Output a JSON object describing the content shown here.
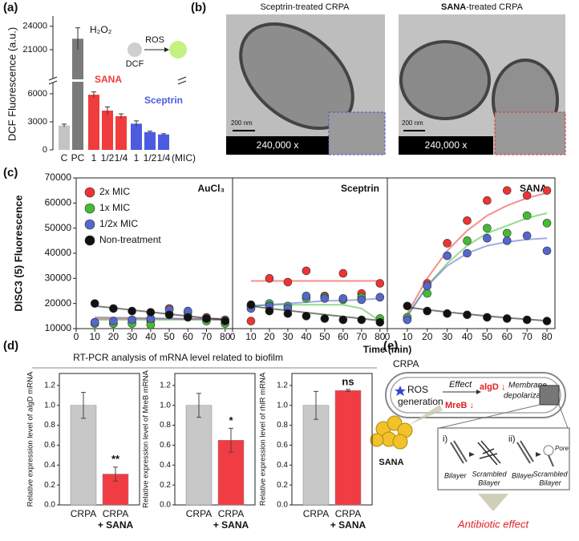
{
  "panel_labels": [
    "(a)",
    "(b)",
    "(c)",
    "(d)",
    "(e)"
  ],
  "chart_data": [
    {
      "type": "bar",
      "ylabel": "DCF Fluorescence (a.u.)",
      "categories": [
        "C",
        "PC",
        "1",
        "1/2",
        "1/4",
        "1",
        "1/2",
        "1/4"
      ],
      "unit_label": "(MIC)",
      "values": [
        2600,
        22400,
        5900,
        4200,
        3600,
        2800,
        1900,
        1650
      ],
      "errors": [
        150,
        1400,
        300,
        400,
        250,
        300,
        100,
        80
      ],
      "colors": [
        "#c4c4c4",
        "#7a7a7a",
        "#f03c3c",
        "#f03c3c",
        "#f03c3c",
        "#4d5be0",
        "#4d5be0",
        "#4d5be0"
      ],
      "ylim": [
        0,
        25000
      ],
      "y_break": [
        7200,
        17300
      ],
      "yticks": [
        0,
        3000,
        6000,
        21000,
        24000
      ],
      "annotations": {
        "h2o2": "H₂O₂",
        "ros": "ROS",
        "dcf": "DCF",
        "sana": "SANA",
        "sceptrin": "Sceptrin"
      }
    },
    {
      "type": "scatter",
      "title": "AuCl₃",
      "ylabel": "DISC3 (5) Fluorescence",
      "x": [
        10,
        20,
        30,
        40,
        50,
        60,
        70,
        80
      ],
      "xlim": [
        0,
        84
      ],
      "xticks": [
        0,
        10,
        20,
        30,
        40,
        50,
        60,
        70,
        80
      ],
      "ylim": [
        10000,
        70000
      ],
      "yticks": [
        10000,
        20000,
        30000,
        40000,
        50000,
        60000,
        70000
      ],
      "series": [
        {
          "name": "2x MIC",
          "color": "#ee3333",
          "values": [
            12500,
            12000,
            12500,
            13000,
            18000,
            15000,
            14500,
            12500
          ],
          "fit": [
            14000,
            14000,
            14000,
            14000,
            14000,
            14000,
            14000,
            14000
          ]
        },
        {
          "name": "1x MIC",
          "color": "#44bb33",
          "values": [
            12000,
            12000,
            12000,
            11500,
            16000,
            16500,
            13000,
            12000
          ],
          "fit": [
            13500,
            13500,
            13500,
            13500,
            13500,
            13500,
            13500,
            13500
          ]
        },
        {
          "name": "1/2x MIC",
          "color": "#5566cc",
          "values": [
            12500,
            13000,
            13500,
            14000,
            17500,
            17000,
            14000,
            13500
          ],
          "fit": [
            14500,
            14400,
            14300,
            14100,
            14000,
            13800,
            13700,
            13500
          ]
        },
        {
          "name": "Non-treatment",
          "color": "#111111",
          "values": [
            20000,
            18000,
            17000,
            16500,
            15500,
            14500,
            14000,
            13000
          ],
          "fit": [
            19000,
            18200,
            17400,
            16600,
            15800,
            15000,
            14200,
            13500
          ]
        }
      ]
    },
    {
      "type": "scatter",
      "title": "Sceptrin",
      "xlabel": "Time (min)",
      "x": [
        10,
        20,
        30,
        40,
        50,
        60,
        70,
        80
      ],
      "xlim": [
        0,
        84
      ],
      "xticks": [
        0,
        10,
        20,
        30,
        40,
        50,
        60,
        70,
        80
      ],
      "ylim": [
        10000,
        70000
      ],
      "series": [
        {
          "color": "#ee3333",
          "values": [
            13000,
            30000,
            28500,
            33000,
            23000,
            32000,
            24000,
            28000
          ],
          "fit": [
            29000,
            29000,
            29000,
            29000,
            29000,
            29000,
            29000,
            29000
          ]
        },
        {
          "color": "#44bb33",
          "values": [
            19000,
            20000,
            19000,
            22000,
            22500,
            21500,
            22500,
            14000
          ],
          "fit": [
            19000,
            19500,
            19500,
            19500,
            19500,
            19500,
            18000,
            13000
          ]
        },
        {
          "color": "#5566cc",
          "values": [
            18000,
            19000,
            18000,
            23000,
            22000,
            22000,
            21500,
            22500
          ],
          "fit": [
            19000,
            19500,
            20000,
            20500,
            21000,
            21200,
            21500,
            22000
          ]
        },
        {
          "color": "#111111",
          "values": [
            19500,
            17000,
            16000,
            15000,
            14000,
            13500,
            13500,
            12500
          ],
          "fit": [
            19000,
            18000,
            17200,
            16400,
            15600,
            14800,
            14000,
            13200
          ]
        }
      ]
    },
    {
      "type": "scatter",
      "title": "SANA",
      "x": [
        10,
        20,
        30,
        40,
        50,
        60,
        70,
        80
      ],
      "xlim": [
        0,
        84
      ],
      "xticks": [
        0,
        10,
        20,
        30,
        40,
        50,
        60,
        70,
        80
      ],
      "ylim": [
        10000,
        70000
      ],
      "series": [
        {
          "color": "#ee3333",
          "values": [
            14000,
            28000,
            44000,
            53000,
            61000,
            65000,
            63000,
            65000
          ],
          "fit": [
            16000,
            30000,
            41000,
            49000,
            55000,
            59000,
            62000,
            64000
          ]
        },
        {
          "color": "#44bb33",
          "values": [
            14500,
            24000,
            39000,
            45000,
            50000,
            48000,
            55000,
            52000
          ],
          "fit": [
            15000,
            27000,
            36000,
            43000,
            48000,
            51000,
            54000,
            56000
          ]
        },
        {
          "color": "#5566cc",
          "values": [
            13500,
            27000,
            39000,
            40000,
            46000,
            45000,
            47000,
            41000
          ],
          "fit": [
            15000,
            27000,
            35000,
            40000,
            43000,
            44500,
            45500,
            46000
          ]
        },
        {
          "color": "#111111",
          "values": [
            19000,
            17000,
            16000,
            15500,
            14500,
            14000,
            13500,
            13000
          ],
          "fit": [
            18500,
            17500,
            16600,
            15800,
            15000,
            14300,
            13700,
            13100
          ]
        }
      ]
    },
    {
      "type": "bar",
      "ylabel": "Relative expression level of algD mRNA",
      "categories": [
        [
          "CRPA"
        ],
        [
          "CRPA",
          "+ SANA"
        ]
      ],
      "values": [
        1.0,
        0.31
      ],
      "errors": [
        0.13,
        0.07
      ],
      "colors": [
        "#c8c8c8",
        "#f23c44"
      ],
      "significance": "**",
      "ylim": [
        0,
        1.32
      ],
      "yticks": [
        {
          "value": 0,
          "label": "0.0"
        },
        0.2,
        0.4,
        0.6,
        0.8,
        {
          "value": 1,
          "label": "1.0"
        },
        1.2
      ]
    },
    {
      "type": "bar",
      "ylabel": "Relative expression level of MreB mRNA",
      "categories": [
        [
          "CRPA"
        ],
        [
          "CRPA",
          "+ SANA"
        ]
      ],
      "values": [
        1.0,
        0.65
      ],
      "errors": [
        0.12,
        0.12
      ],
      "colors": [
        "#c8c8c8",
        "#f23c44"
      ],
      "significance": "*",
      "ylim": [
        0,
        1.32
      ],
      "yticks": [
        {
          "value": 0,
          "label": "0.0"
        },
        0.2,
        0.4,
        0.6,
        0.8,
        {
          "value": 1,
          "label": "1.0"
        },
        1.2
      ]
    },
    {
      "type": "bar",
      "ylabel": "Relative expression level of rhlR mRNA",
      "categories": [
        [
          "CRPA"
        ],
        [
          "CRPA",
          "+ SANA"
        ]
      ],
      "values": [
        1.0,
        1.15
      ],
      "errors": [
        0.14,
        0.01
      ],
      "colors": [
        "#c8c8c8",
        "#f23c44"
      ],
      "significance": "ns",
      "ylim": [
        0,
        1.32
      ],
      "yticks": [
        {
          "value": 0,
          "label": "0.0"
        },
        0.2,
        0.4,
        0.6,
        0.8,
        {
          "value": 1,
          "label": "1.0"
        },
        1.2
      ]
    }
  ],
  "panel_d_title": "RT-PCR analysis of mRNA level related to biofilm",
  "panel_b": {
    "left_title": "Sceptrin-treated CRPA",
    "right_title_bold": "SANA",
    "right_title_rest": "-treated CRPA",
    "scale_bar": "200 nm",
    "magnification": "240,000 x"
  },
  "panel_e": {
    "cell": "CRPA",
    "ros": "ROS",
    "generation": "generation",
    "effect": "Effect",
    "algd": "algD ↓",
    "mreb": "MreB ↓",
    "membrane": [
      "Membrane",
      "depolarization"
    ],
    "step1": "i)",
    "step2": "ii)",
    "bilayer": "Bilayer",
    "scrambled": [
      "Scrambled",
      "Bilayer"
    ],
    "pore": "Pore",
    "agent": "SANA",
    "result": "Antibiotic effect"
  }
}
